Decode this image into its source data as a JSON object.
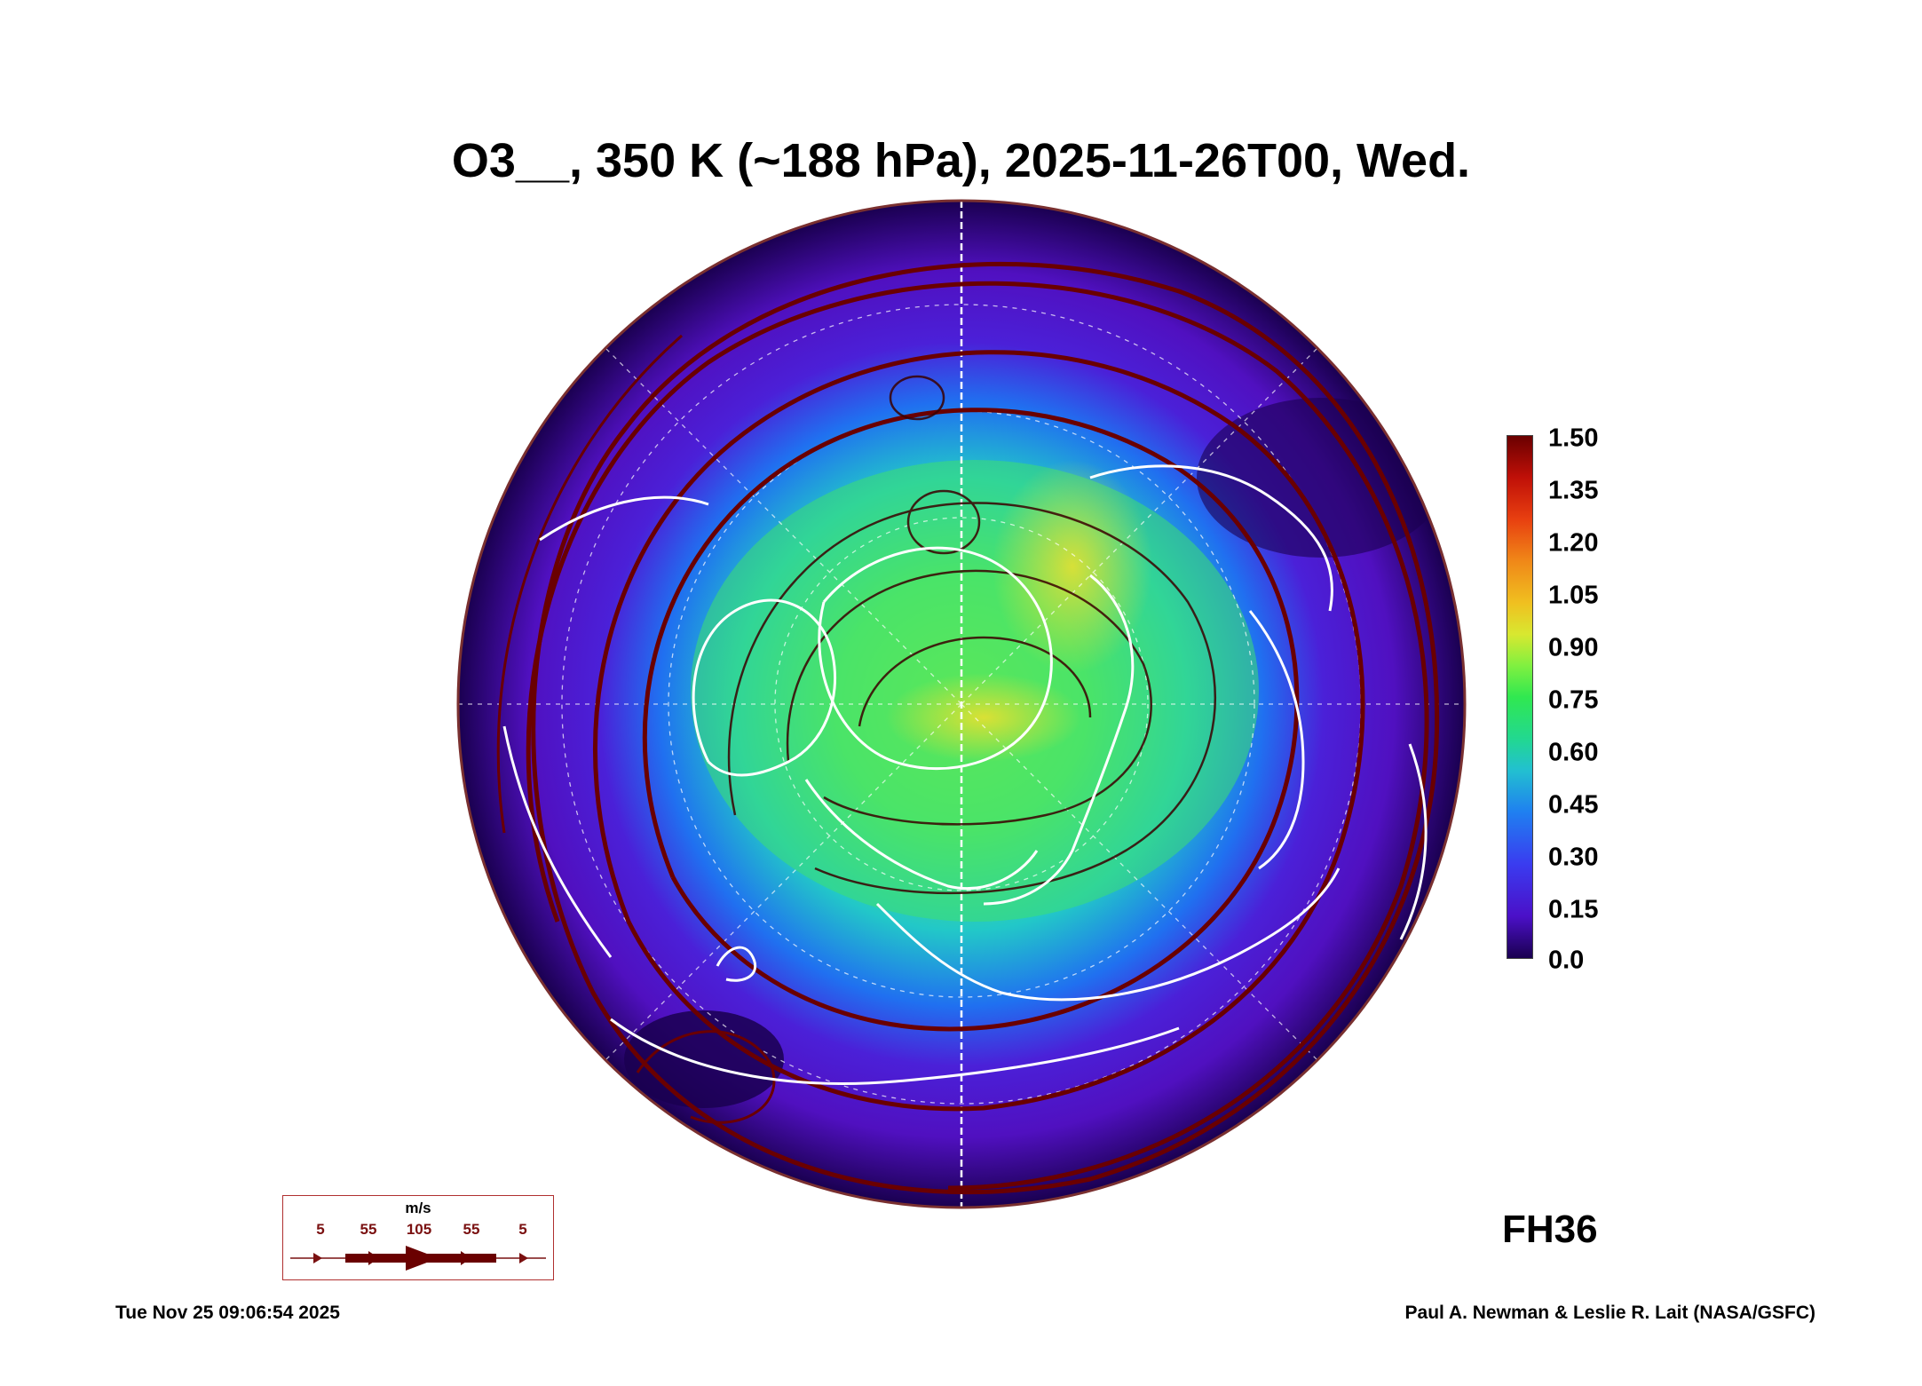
{
  "title": "O3__, 350 K (~188 hPa), 2025-11-26T00, Wed.",
  "colorbar": {
    "ticks": [
      "1.50",
      "1.35",
      "1.20",
      "1.05",
      "0.90",
      "0.75",
      "0.60",
      "0.45",
      "0.30",
      "0.15",
      "0.0"
    ],
    "colors": [
      "#1a0050",
      "#4b10c8",
      "#1f80f0",
      "#22d890",
      "#d8e830",
      "#f08818",
      "#6a0000"
    ]
  },
  "forecast_hour": "FH36",
  "wind_legend": {
    "unit": "m/s",
    "speeds": [
      "5",
      "55",
      "105",
      "55",
      "5"
    ]
  },
  "footer": {
    "timestamp": "Tue Nov 25 09:06:54 2025",
    "credit": "Paul A. Newman & Leslie R. Lait (NASA/GSFC)"
  }
}
